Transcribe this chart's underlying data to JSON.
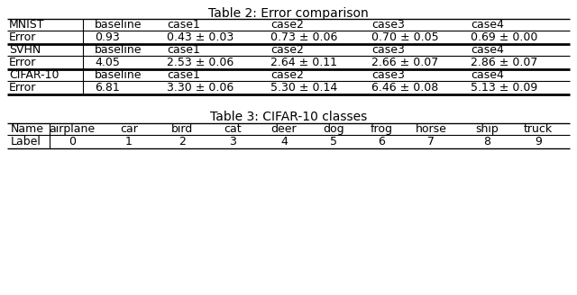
{
  "table2_title": "Table 2: Error comparison",
  "table3_title": "Table 3: CIFAR-10 classes",
  "t2_col0": [
    "MNIST",
    "Error",
    "SVHN",
    "Error",
    "CIFAR-10",
    "Error"
  ],
  "t2_baseline": [
    "baseline",
    "0.93",
    "baseline",
    "4.05",
    "baseline",
    "6.81"
  ],
  "t2_case1": [
    "case1",
    "0.43 ± 0.03",
    "case1",
    "2.53 ± 0.06",
    "case1",
    "3.30 ± 0.06"
  ],
  "t2_case2": [
    "case2",
    "0.73 ± 0.06",
    "case2",
    "2.64 ± 0.11",
    "case2",
    "5.30 ± 0.14"
  ],
  "t2_case3": [
    "case3",
    "0.70 ± 0.05",
    "case3",
    "2.66 ± 0.07",
    "case3",
    "6.46 ± 0.08"
  ],
  "t2_case4": [
    "case4",
    "0.69 ± 0.00",
    "case4",
    "2.86 ± 0.07",
    "case4",
    "5.13 ± 0.09"
  ],
  "t3_name_row": [
    "Name",
    "airplane",
    "car",
    "bird",
    "cat",
    "deer",
    "dog",
    "frog",
    "horse",
    "ship",
    "truck"
  ],
  "t3_label_row": [
    "Label",
    "0",
    "1",
    "2",
    "3",
    "4",
    "5",
    "6",
    "7",
    "8",
    "9"
  ],
  "bg_color": "#ffffff",
  "text_color": "#000000",
  "font_size": 9.0,
  "title_font_size": 10.0
}
